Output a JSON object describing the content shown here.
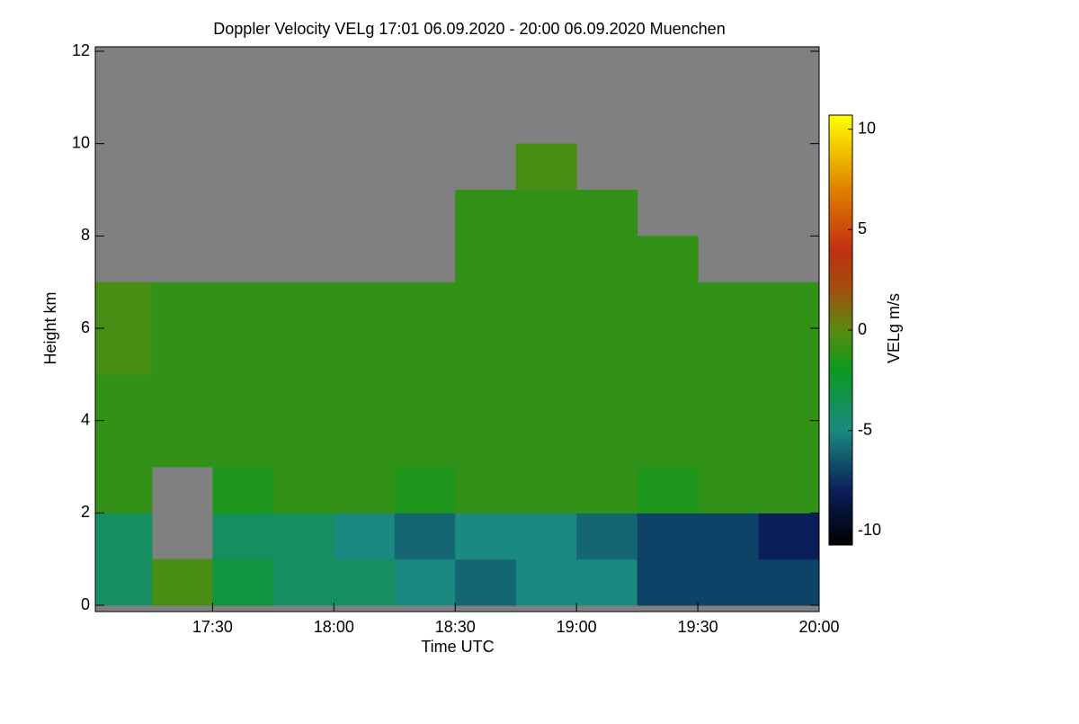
{
  "chart_data": {
    "type": "heatmap",
    "title": "Doppler Velocity VELg   17:01 06.09.2020 - 20:00 06.09.2020 Muenchen",
    "xlabel": "Time UTC",
    "ylabel": "Height km",
    "colorbar_label": "VELg m/s",
    "xbins": [
      1021,
      1035,
      1050,
      1065,
      1080,
      1095,
      1110,
      1125,
      1140,
      1155,
      1170,
      1185,
      1200
    ],
    "ybins": [
      0,
      1,
      2,
      3,
      4,
      5,
      6,
      7,
      8,
      9,
      10,
      11,
      12
    ],
    "z": [
      [
        -4,
        -0.5,
        -3,
        -4,
        -4,
        -5,
        -6,
        -5,
        -5,
        -7,
        -7,
        -7
      ],
      [
        -4,
        null,
        -4,
        -4,
        -5,
        -6,
        -5,
        -5,
        -6,
        -7,
        -7,
        -8
      ],
      [
        -1,
        null,
        -1.5,
        -1,
        -1,
        -1.5,
        -1,
        -1,
        -1,
        -1.5,
        -1,
        -1
      ],
      [
        -1,
        -1,
        -1,
        -1,
        -1,
        -1,
        -1,
        -1,
        -1,
        -1,
        -1,
        -1
      ],
      [
        -1,
        -1,
        -1,
        -1,
        -1,
        -1,
        -1,
        -1,
        -1,
        -1,
        -1,
        -1
      ],
      [
        -0.5,
        -1,
        -1,
        -1,
        -1,
        -1,
        -1,
        -1,
        -1,
        -1,
        -1,
        -1
      ],
      [
        -0.5,
        -1,
        -1,
        -1,
        -1,
        -1,
        -1,
        -1,
        -1,
        -1,
        -1,
        -1
      ],
      [
        null,
        null,
        null,
        null,
        null,
        null,
        -1,
        -1,
        -1,
        -1,
        null,
        null
      ],
      [
        null,
        null,
        null,
        null,
        null,
        null,
        -1,
        -1,
        -1,
        null,
        null,
        null
      ],
      [
        null,
        null,
        null,
        null,
        null,
        null,
        null,
        -0.5,
        null,
        null,
        null,
        null
      ],
      [
        null,
        null,
        null,
        null,
        null,
        null,
        null,
        null,
        null,
        null,
        null,
        null
      ],
      [
        null,
        null,
        null,
        null,
        null,
        null,
        null,
        null,
        null,
        null,
        null,
        null
      ]
    ],
    "missing_color": "#808080",
    "xlim": [
      1021,
      1200
    ],
    "xticks": [
      {
        "value": 1050,
        "label": "17:30"
      },
      {
        "value": 1080,
        "label": "18:00"
      },
      {
        "value": 1110,
        "label": "18:30"
      },
      {
        "value": 1140,
        "label": "19:00"
      },
      {
        "value": 1170,
        "label": "19:30"
      },
      {
        "value": 1200,
        "label": "20:00"
      }
    ],
    "ylim": [
      0,
      12
    ],
    "yticks": [
      0,
      2,
      4,
      6,
      8,
      10,
      12
    ],
    "clim": [
      -10.7,
      10.7
    ],
    "cticks": [
      10,
      5,
      0,
      -5,
      -10
    ],
    "colorscale": [
      [
        -10.7,
        "#000000"
      ],
      [
        -8,
        "#0a1e5a"
      ],
      [
        -5,
        "#1a8a80"
      ],
      [
        -2,
        "#0a9a20"
      ],
      [
        0,
        "#5a8a10"
      ],
      [
        2,
        "#a05010"
      ],
      [
        4,
        "#c03010"
      ],
      [
        7,
        "#e08000"
      ],
      [
        10.7,
        "#ffff00"
      ]
    ]
  }
}
